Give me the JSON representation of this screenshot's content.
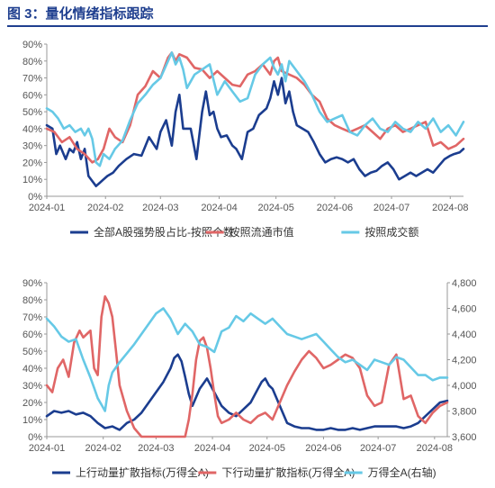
{
  "figure": {
    "title": "图 3：量化情绪指标跟踪"
  },
  "colors": {
    "dark_blue": "#1b3d8f",
    "red": "#e06666",
    "light_blue": "#66c9e6",
    "axis": "#999999",
    "text": "#555555",
    "title": "#1f3f8f"
  },
  "chart_data": [
    {
      "type": "line",
      "x_ticks": [
        "2024-01",
        "2024-02",
        "2024-03",
        "2024-04",
        "2024-05",
        "2024-06",
        "2024-07",
        "2024-08"
      ],
      "x_tick_pos": [
        0,
        31,
        60,
        91,
        121,
        152,
        182,
        213
      ],
      "x_end": 220,
      "ylim": [
        0,
        90
      ],
      "y_ticks": [
        "0%",
        "10%",
        "20%",
        "30%",
        "40%",
        "50%",
        "60%",
        "70%",
        "80%",
        "90%"
      ],
      "y_tick_values": [
        0,
        10,
        20,
        30,
        40,
        50,
        60,
        70,
        80,
        90
      ],
      "legend_position": "bottom",
      "series": [
        {
          "name": "全部A股强势股占比-按照个数",
          "axis": "left",
          "color": "#1b3d8f",
          "x": [
            0,
            3,
            5,
            7,
            10,
            12,
            14,
            16,
            18,
            20,
            22,
            26,
            28,
            30,
            32,
            35,
            38,
            42,
            46,
            50,
            54,
            58,
            60,
            63,
            66,
            68,
            70,
            72,
            76,
            79,
            82,
            84,
            86,
            88,
            90,
            92,
            95,
            98,
            100,
            103,
            106,
            109,
            112,
            114,
            116,
            118,
            120,
            122,
            124,
            126,
            128,
            130,
            132,
            135,
            138,
            141,
            144,
            147,
            150,
            153,
            156,
            159,
            162,
            165,
            168,
            171,
            174,
            177,
            180,
            183,
            186,
            189,
            192,
            195,
            198,
            201,
            204,
            207,
            210,
            213,
            215,
            218,
            220
          ],
          "y": [
            42,
            40,
            25,
            30,
            22,
            28,
            26,
            32,
            22,
            28,
            12,
            6,
            8,
            10,
            12,
            14,
            18,
            22,
            25,
            24,
            35,
            28,
            38,
            45,
            30,
            50,
            60,
            40,
            40,
            22,
            50,
            62,
            48,
            50,
            40,
            35,
            36,
            30,
            28,
            22,
            38,
            40,
            48,
            50,
            52,
            58,
            68,
            60,
            70,
            55,
            62,
            50,
            42,
            40,
            38,
            32,
            25,
            20,
            22,
            23,
            22,
            20,
            22,
            16,
            12,
            14,
            15,
            18,
            20,
            16,
            10,
            12,
            14,
            12,
            14,
            16,
            14,
            18,
            22,
            24,
            25,
            26,
            28
          ]
        },
        {
          "name": "按照流通市值",
          "axis": "left",
          "color": "#e06666",
          "x": [
            0,
            4,
            8,
            12,
            16,
            20,
            24,
            27,
            30,
            33,
            36,
            40,
            44,
            48,
            52,
            56,
            60,
            64,
            66,
            68,
            70,
            74,
            78,
            82,
            86,
            90,
            94,
            98,
            102,
            106,
            110,
            114,
            118,
            120,
            122,
            124,
            128,
            132,
            136,
            140,
            144,
            148,
            152,
            156,
            160,
            164,
            168,
            172,
            176,
            180,
            184,
            188,
            192,
            196,
            200,
            204,
            208,
            212,
            216,
            220
          ],
          "y": [
            40,
            38,
            32,
            35,
            28,
            25,
            20,
            22,
            28,
            40,
            35,
            32,
            42,
            60,
            65,
            74,
            70,
            82,
            85,
            80,
            84,
            82,
            76,
            75,
            70,
            74,
            70,
            66,
            65,
            72,
            74,
            78,
            72,
            80,
            82,
            74,
            72,
            70,
            66,
            60,
            56,
            46,
            42,
            40,
            38,
            40,
            42,
            38,
            34,
            40,
            42,
            38,
            40,
            42,
            44,
            30,
            32,
            28,
            30,
            34
          ]
        },
        {
          "name": "按照成交额",
          "axis": "left",
          "color": "#66c9e6",
          "x": [
            0,
            3,
            6,
            9,
            12,
            15,
            18,
            20,
            22,
            24,
            26,
            28,
            30,
            33,
            36,
            40,
            44,
            48,
            52,
            56,
            60,
            64,
            66,
            68,
            70,
            72,
            74,
            78,
            82,
            86,
            90,
            94,
            98,
            102,
            106,
            110,
            114,
            118,
            120,
            122,
            124,
            126,
            128,
            132,
            136,
            140,
            144,
            148,
            152,
            156,
            160,
            164,
            168,
            172,
            176,
            180,
            184,
            188,
            192,
            196,
            200,
            204,
            208,
            212,
            216,
            220
          ],
          "y": [
            52,
            50,
            46,
            40,
            42,
            38,
            40,
            36,
            40,
            34,
            20,
            18,
            25,
            22,
            28,
            33,
            45,
            55,
            60,
            66,
            70,
            80,
            85,
            78,
            82,
            75,
            64,
            72,
            75,
            78,
            60,
            68,
            62,
            56,
            58,
            72,
            78,
            82,
            76,
            72,
            78,
            68,
            80,
            74,
            68,
            60,
            50,
            44,
            46,
            48,
            38,
            36,
            42,
            46,
            40,
            38,
            44,
            40,
            38,
            44,
            40,
            46,
            38,
            42,
            36,
            44
          ]
        }
      ]
    },
    {
      "type": "line",
      "x_ticks": [
        "2024-01",
        "2024-02",
        "2024-03",
        "2024-04",
        "2024-05",
        "2024-06",
        "2024-07",
        "2024-08"
      ],
      "x_tick_pos": [
        0,
        31,
        60,
        91,
        121,
        152,
        182,
        213
      ],
      "x_end": 220,
      "ylim": [
        0,
        90
      ],
      "y_ticks": [
        "0%",
        "10%",
        "20%",
        "30%",
        "40%",
        "50%",
        "60%",
        "70%",
        "80%",
        "90%"
      ],
      "y_tick_values": [
        0,
        10,
        20,
        30,
        40,
        50,
        60,
        70,
        80,
        90
      ],
      "y2lim": [
        3600,
        4800
      ],
      "y2_ticks": [
        "3,600",
        "3,800",
        "4,000",
        "4,200",
        "4,400",
        "4,600",
        "4,800"
      ],
      "y2_tick_values": [
        3600,
        3800,
        4000,
        4200,
        4400,
        4600,
        4800
      ],
      "legend_position": "bottom",
      "series": [
        {
          "name": "上行动量扩散指标(万得全A)",
          "axis": "left",
          "color": "#1b3d8f",
          "x": [
            0,
            4,
            8,
            12,
            16,
            20,
            24,
            28,
            32,
            36,
            40,
            44,
            48,
            52,
            56,
            60,
            64,
            68,
            70,
            72,
            74,
            76,
            78,
            80,
            84,
            88,
            92,
            96,
            100,
            104,
            108,
            112,
            116,
            118,
            120,
            122,
            124,
            128,
            132,
            136,
            140,
            144,
            148,
            152,
            156,
            160,
            164,
            168,
            172,
            176,
            180,
            184,
            188,
            192,
            196,
            200,
            204,
            208,
            212,
            216,
            220
          ],
          "y": [
            12,
            15,
            14,
            15,
            13,
            14,
            12,
            8,
            5,
            6,
            4,
            8,
            10,
            14,
            20,
            26,
            32,
            40,
            46,
            48,
            44,
            35,
            25,
            18,
            28,
            34,
            26,
            18,
            14,
            12,
            16,
            20,
            28,
            32,
            34,
            30,
            28,
            18,
            8,
            6,
            5,
            5,
            4,
            4,
            5,
            4,
            4,
            5,
            4,
            5,
            6,
            6,
            6,
            6,
            5,
            6,
            8,
            12,
            16,
            20,
            21
          ]
        },
        {
          "name": "下行动量扩散指标(万得全A)",
          "axis": "left",
          "color": "#e06666",
          "x": [
            0,
            3,
            6,
            9,
            12,
            15,
            18,
            20,
            22,
            24,
            26,
            28,
            30,
            32,
            34,
            36,
            38,
            40,
            44,
            48,
            52,
            56,
            60,
            64,
            68,
            72,
            76,
            78,
            80,
            82,
            84,
            86,
            88,
            90,
            92,
            94,
            96,
            100,
            104,
            108,
            112,
            116,
            120,
            124,
            128,
            132,
            136,
            140,
            144,
            148,
            152,
            156,
            160,
            164,
            168,
            172,
            176,
            180,
            184,
            188,
            192,
            196,
            200,
            204,
            208,
            212,
            216,
            220
          ],
          "y": [
            30,
            26,
            40,
            45,
            35,
            55,
            62,
            58,
            60,
            62,
            40,
            36,
            70,
            82,
            78,
            70,
            50,
            30,
            15,
            5,
            0,
            0,
            0,
            0,
            0,
            0,
            0,
            10,
            25,
            45,
            56,
            58,
            52,
            40,
            25,
            12,
            8,
            10,
            14,
            10,
            8,
            12,
            14,
            10,
            20,
            30,
            38,
            45,
            50,
            46,
            40,
            42,
            45,
            48,
            46,
            40,
            24,
            18,
            20,
            42,
            48,
            22,
            24,
            12,
            8,
            14,
            18,
            20
          ]
        },
        {
          "name": "万得全A(右轴)",
          "axis": "right",
          "color": "#66c9e6",
          "x": [
            0,
            4,
            8,
            12,
            16,
            20,
            24,
            26,
            28,
            30,
            32,
            34,
            36,
            40,
            44,
            48,
            52,
            56,
            60,
            64,
            68,
            72,
            76,
            80,
            84,
            88,
            92,
            96,
            100,
            104,
            108,
            112,
            116,
            120,
            124,
            128,
            132,
            136,
            140,
            144,
            148,
            152,
            156,
            160,
            164,
            168,
            172,
            176,
            180,
            184,
            188,
            192,
            196,
            200,
            204,
            208,
            212,
            216,
            220
          ],
          "y": [
            4520,
            4460,
            4380,
            4340,
            4360,
            4200,
            4060,
            3980,
            3900,
            3850,
            3800,
            4000,
            4100,
            4180,
            4250,
            4320,
            4400,
            4480,
            4560,
            4600,
            4520,
            4400,
            4480,
            4420,
            4320,
            4300,
            4260,
            4420,
            4450,
            4540,
            4500,
            4560,
            4520,
            4480,
            4520,
            4460,
            4400,
            4380,
            4360,
            4380,
            4400,
            4340,
            4280,
            4220,
            4180,
            4200,
            4160,
            4120,
            4200,
            4180,
            4160,
            4220,
            4200,
            4140,
            4080,
            4080,
            4040,
            4060,
            4060
          ]
        }
      ]
    }
  ]
}
